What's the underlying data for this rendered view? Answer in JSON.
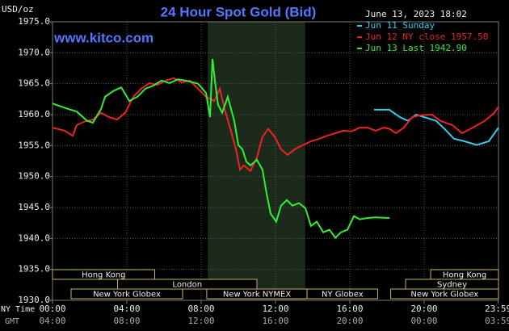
{
  "chart_data": {
    "type": "line",
    "title": "24 Hour Spot Gold (Bid)",
    "timestamp": "June 13, 2023 18:02",
    "watermark": "www.kitco.com",
    "y_label": "USD/oz",
    "x_label": "NY Time",
    "x2_label": "GMT",
    "xlim": [
      0,
      24
    ],
    "ylim": [
      1930,
      1975
    ],
    "yticks": [
      {
        "value": 1930,
        "label": "1930.0"
      },
      {
        "value": 1935,
        "label": "1935.0"
      },
      {
        "value": 1940,
        "label": "1940.0"
      },
      {
        "value": 1945,
        "label": "1945.0"
      },
      {
        "value": 1950,
        "label": "1950.0"
      },
      {
        "value": 1955,
        "label": "1955.0"
      },
      {
        "value": 1960,
        "label": "1960.0"
      },
      {
        "value": 1965,
        "label": "1965.0"
      },
      {
        "value": 1970,
        "label": "1970.0"
      },
      {
        "value": 1975,
        "label": "1975.0"
      }
    ],
    "xticks": [
      {
        "value": 0,
        "label": "00:00"
      },
      {
        "value": 4,
        "label": "04:00"
      },
      {
        "value": 8,
        "label": "08:00"
      },
      {
        "value": 12,
        "label": "12:00"
      },
      {
        "value": 16,
        "label": "16:00"
      },
      {
        "value": 20,
        "label": "20:00"
      },
      {
        "value": 23.98,
        "label": "23:59"
      }
    ],
    "x2ticks": [
      {
        "value": 0,
        "label": "04:00"
      },
      {
        "value": 4,
        "label": "08:00"
      },
      {
        "value": 8,
        "label": "12:00"
      },
      {
        "value": 12,
        "label": "16:00"
      },
      {
        "value": 16,
        "label": "20:00"
      },
      {
        "value": 20,
        "label": "00:00"
      },
      {
        "value": 23.98,
        "label": "03:59"
      }
    ],
    "grid": true,
    "highlight_x": [
      8.35,
      13.6
    ],
    "session_rows": [
      [
        {
          "label": "Hong Kong",
          "start": 0,
          "end": 5.5
        },
        {
          "label": "Hong Kong",
          "start": 20.35,
          "end": 24
        }
      ],
      [
        {
          "label": "London",
          "start": 3.5,
          "end": 11
        },
        {
          "label": "Sydney",
          "start": 19,
          "end": 24
        }
      ],
      [
        {
          "label": "New York Globex",
          "start": 1,
          "end": 7
        },
        {
          "label": "New York NYMEX",
          "start": 8.3,
          "end": 13.7
        },
        {
          "label": "NY Globex",
          "start": 13.7,
          "end": 17.5
        },
        {
          "label": "New York Globex",
          "start": 18.2,
          "end": 24
        }
      ]
    ],
    "series": [
      {
        "name": "Jun 11 Sunday",
        "color": "#33ccee",
        "x": [
          17.3,
          18.13,
          18.26,
          18.7,
          19.13,
          19.57,
          20.0,
          20.65,
          21.09,
          21.61,
          22.17,
          22.83,
          23.48,
          24.0
        ],
        "values": [
          1960.8,
          1960.8,
          1960.5,
          1959.6,
          1959.0,
          1960.0,
          1959.6,
          1959.0,
          1957.7,
          1956.1,
          1955.7,
          1955.1,
          1955.7,
          1957.9
        ]
      },
      {
        "name": "Jun 12 NY close 1957.50",
        "color": "#ee2222",
        "x": [
          0,
          0.65,
          1.09,
          1.3,
          1.74,
          2.17,
          2.61,
          3.04,
          3.48,
          3.91,
          4.35,
          4.78,
          5.22,
          5.65,
          6.09,
          6.52,
          6.96,
          7.39,
          7.83,
          8.26,
          8.7,
          9.0,
          9.26,
          9.57,
          9.87,
          10.09,
          10.3,
          10.65,
          11.0,
          11.3,
          11.61,
          11.96,
          12.3,
          12.65,
          13.04,
          13.48,
          13.91,
          14.35,
          14.78,
          15.22,
          15.65,
          16.09,
          16.52,
          16.96,
          17.39,
          17.83,
          18.13,
          18.48,
          18.91,
          19.35,
          19.78,
          20.43,
          20.87,
          21.52,
          22.04,
          22.61,
          23.26,
          23.78,
          24.0
        ],
        "values": [
          1957.9,
          1957.4,
          1956.6,
          1958.3,
          1958.9,
          1959.2,
          1960.3,
          1959.6,
          1959.2,
          1960.3,
          1962.9,
          1964.2,
          1965.1,
          1964.8,
          1965.5,
          1965.9,
          1965.2,
          1965.5,
          1964.2,
          1962.9,
          1962.2,
          1964.2,
          1960.9,
          1957.7,
          1954.4,
          1951.1,
          1951.8,
          1950.9,
          1953.1,
          1956.4,
          1957.7,
          1956.4,
          1954.4,
          1953.5,
          1954.4,
          1955.1,
          1955.7,
          1956.1,
          1956.6,
          1957.0,
          1957.4,
          1957.3,
          1957.9,
          1957.9,
          1957.4,
          1957.9,
          1957.7,
          1957.0,
          1957.9,
          1959.6,
          1959.9,
          1960.0,
          1959.0,
          1958.3,
          1957.0,
          1957.9,
          1959.0,
          1960.3,
          1961.3
        ]
      },
      {
        "name": "Jun 13 Last 1942.90",
        "color": "#33ee33",
        "x": [
          0,
          0.65,
          1.3,
          1.87,
          2.17,
          2.61,
          2.83,
          3.26,
          3.7,
          4.13,
          4.57,
          5.0,
          5.43,
          5.87,
          6.3,
          6.74,
          7.17,
          7.83,
          8.26,
          8.48,
          8.61,
          8.74,
          8.91,
          9.13,
          9.43,
          9.78,
          10.0,
          10.22,
          10.43,
          10.65,
          11.0,
          11.3,
          11.52,
          11.74,
          12.04,
          12.3,
          12.61,
          12.91,
          13.26,
          13.61,
          13.91,
          14.22,
          14.57,
          14.91,
          15.22,
          15.52,
          15.87,
          16.22,
          16.52,
          16.96,
          17.39,
          18.13
        ],
        "values": [
          1961.8,
          1961.1,
          1960.5,
          1959.0,
          1958.7,
          1960.9,
          1962.9,
          1963.8,
          1964.4,
          1962.2,
          1962.9,
          1964.2,
          1964.7,
          1965.5,
          1965.1,
          1965.7,
          1965.5,
          1965.0,
          1963.5,
          1959.6,
          1969.0,
          1965.5,
          1961.6,
          1960.3,
          1962.9,
          1959.0,
          1955.1,
          1954.4,
          1952.4,
          1951.8,
          1952.7,
          1951.1,
          1947.2,
          1944.0,
          1942.7,
          1945.3,
          1946.2,
          1945.3,
          1945.7,
          1944.9,
          1942.0,
          1942.7,
          1941.0,
          1941.4,
          1940.1,
          1941.0,
          1941.4,
          1943.6,
          1943.1,
          1943.3,
          1943.4,
          1943.3
        ]
      }
    ]
  }
}
